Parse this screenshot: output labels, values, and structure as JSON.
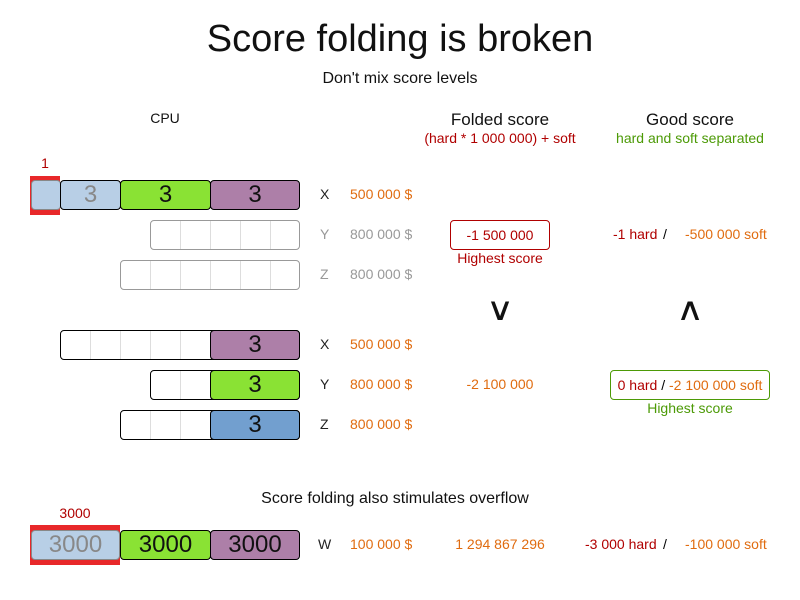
{
  "title": "Score folding is broken",
  "subtitle": "Don't mix score levels",
  "cpu_label": "CPU",
  "folded": {
    "heading": "Folded score",
    "formula": "(hard * 1 000 000) + soft"
  },
  "good": {
    "heading": "Good score",
    "desc": "hard and soft separated"
  },
  "colors": {
    "blue_light": "#b8cfe6",
    "green": "#8ae234",
    "purple": "#ad7fa8",
    "blue": "#729fcf",
    "marker": "#e8282a",
    "orange": "#e06c10",
    "dark_red": "#b00000",
    "green_text": "#4c9a06"
  },
  "scenario1": {
    "marker": "1",
    "rows": [
      {
        "computer": "X",
        "cost": "500 000 $",
        "values": [
          "3",
          "3",
          "3"
        ]
      },
      {
        "computer": "Y",
        "cost": "800 000 $"
      },
      {
        "computer": "Z",
        "cost": "800 000 $"
      }
    ],
    "folded_score": "-1 500 000",
    "folded_note": "Highest score",
    "good_hard": "-1 hard",
    "good_sep": "/",
    "good_soft": "-500 000 soft"
  },
  "comparison": {
    "folded": "∨",
    "good": "∧"
  },
  "scenario2": {
    "rows": [
      {
        "computer": "X",
        "cost": "500 000 $",
        "value": "3"
      },
      {
        "computer": "Y",
        "cost": "800 000 $",
        "value": "3"
      },
      {
        "computer": "Z",
        "cost": "800 000 $",
        "value": "3"
      }
    ],
    "folded_score": "-2 100 000",
    "good_hard": "0 hard",
    "good_sep": "/",
    "good_soft": "-2 100 000 soft",
    "good_note": "Highest score"
  },
  "overflow": {
    "heading": "Score folding also stimulates overflow",
    "marker": "3000",
    "values": [
      "3000",
      "3000",
      "3000"
    ],
    "computer": "W",
    "cost": "100 000 $",
    "folded_score": "1 294 867 296",
    "good_hard": "-3 000 hard",
    "good_sep": "/",
    "good_soft": "-100 000 soft"
  }
}
